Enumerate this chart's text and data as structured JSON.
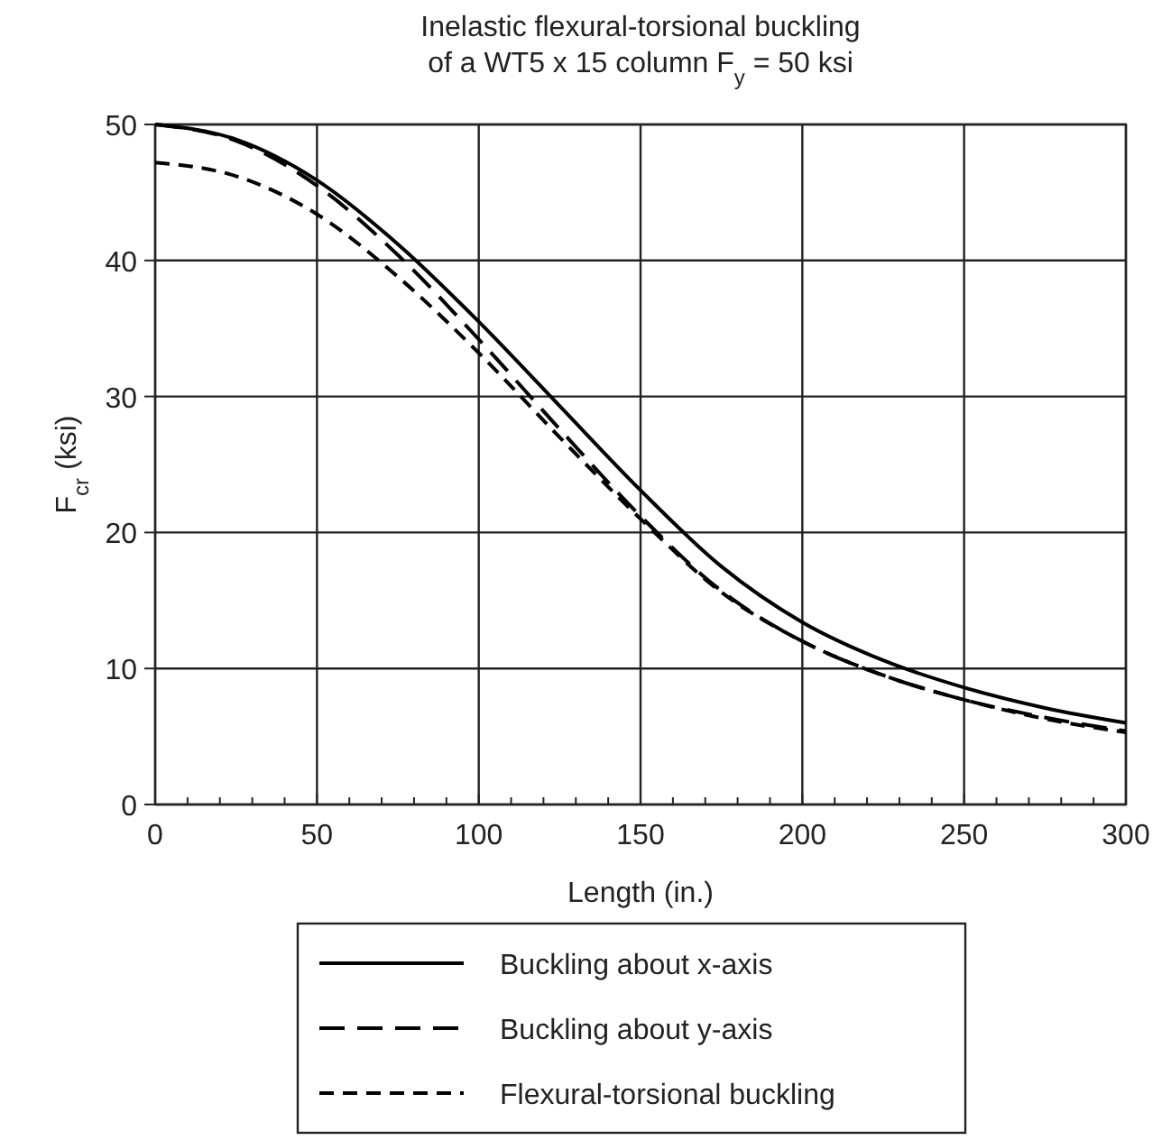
{
  "chart_data": {
    "type": "line",
    "title": "Inelastic flexural-torsional buckling\nof a WT5 x 15 column F$_{y}$ = 50 ksi",
    "xlabel": "Length (in.)",
    "ylabel": "F$_{cr}$ (ksi)",
    "x": [
      0,
      25,
      50,
      75,
      100,
      125,
      150,
      175,
      200,
      225,
      250,
      275,
      300
    ],
    "series": [
      {
        "name": "Buckling about x-axis",
        "color": "#000000",
        "line_style": "solid",
        "values": [
          50,
          48.9,
          45.9,
          41.2,
          35.5,
          29.3,
          23.1,
          17.5,
          13.4,
          10.6,
          8.6,
          7.1,
          6
        ]
      },
      {
        "name": "Buckling about y-axis",
        "color": "#000000",
        "line_style": "dashed",
        "values": [
          50,
          48.8,
          45.5,
          40.4,
          34.2,
          27.6,
          21.2,
          15.7,
          12,
          9.5,
          7.7,
          6.4,
          5.4
        ]
      },
      {
        "name": "Flexural-torsional buckling",
        "color": "#000000",
        "line_style": "dashed",
        "values": [
          47.2,
          46.2,
          43.4,
          38.8,
          33.2,
          27,
          21,
          15.6,
          12,
          9.5,
          7.7,
          6.3,
          5.3
        ]
      }
    ],
    "xlim": [
      0,
      300
    ],
    "ylim": [
      0,
      50
    ],
    "xticks": [
      0,
      {
        "value": 10,
        "label": null
      },
      {
        "value": 20,
        "label": null
      },
      {
        "value": 30,
        "label": null
      },
      {
        "value": 40,
        "label": null
      },
      50,
      {
        "value": 60,
        "label": null
      },
      {
        "value": 70,
        "label": null
      },
      {
        "value": 80,
        "label": null
      },
      {
        "value": 90,
        "label": null
      },
      100,
      {
        "value": 110,
        "label": null
      },
      {
        "value": 120,
        "label": null
      },
      {
        "value": 130,
        "label": null
      },
      {
        "value": 140,
        "label": null
      },
      150,
      {
        "value": 160,
        "label": null
      },
      {
        "value": 170,
        "label": null
      },
      {
        "value": 180,
        "label": null
      },
      {
        "value": 190,
        "label": null
      },
      200,
      {
        "value": 210,
        "label": null
      },
      {
        "value": 220,
        "label": null
      },
      {
        "value": 230,
        "label": null
      },
      {
        "value": 240,
        "label": null
      },
      250,
      {
        "value": 260,
        "label": null
      },
      {
        "value": 270,
        "label": null
      },
      {
        "value": 280,
        "label": null
      },
      {
        "value": 290,
        "label": null
      },
      300
    ],
    "yticks": [
      0,
      10,
      20,
      30,
      40,
      50
    ],
    "grid": true,
    "legend": "bottom",
    "marker": "none"
  }
}
